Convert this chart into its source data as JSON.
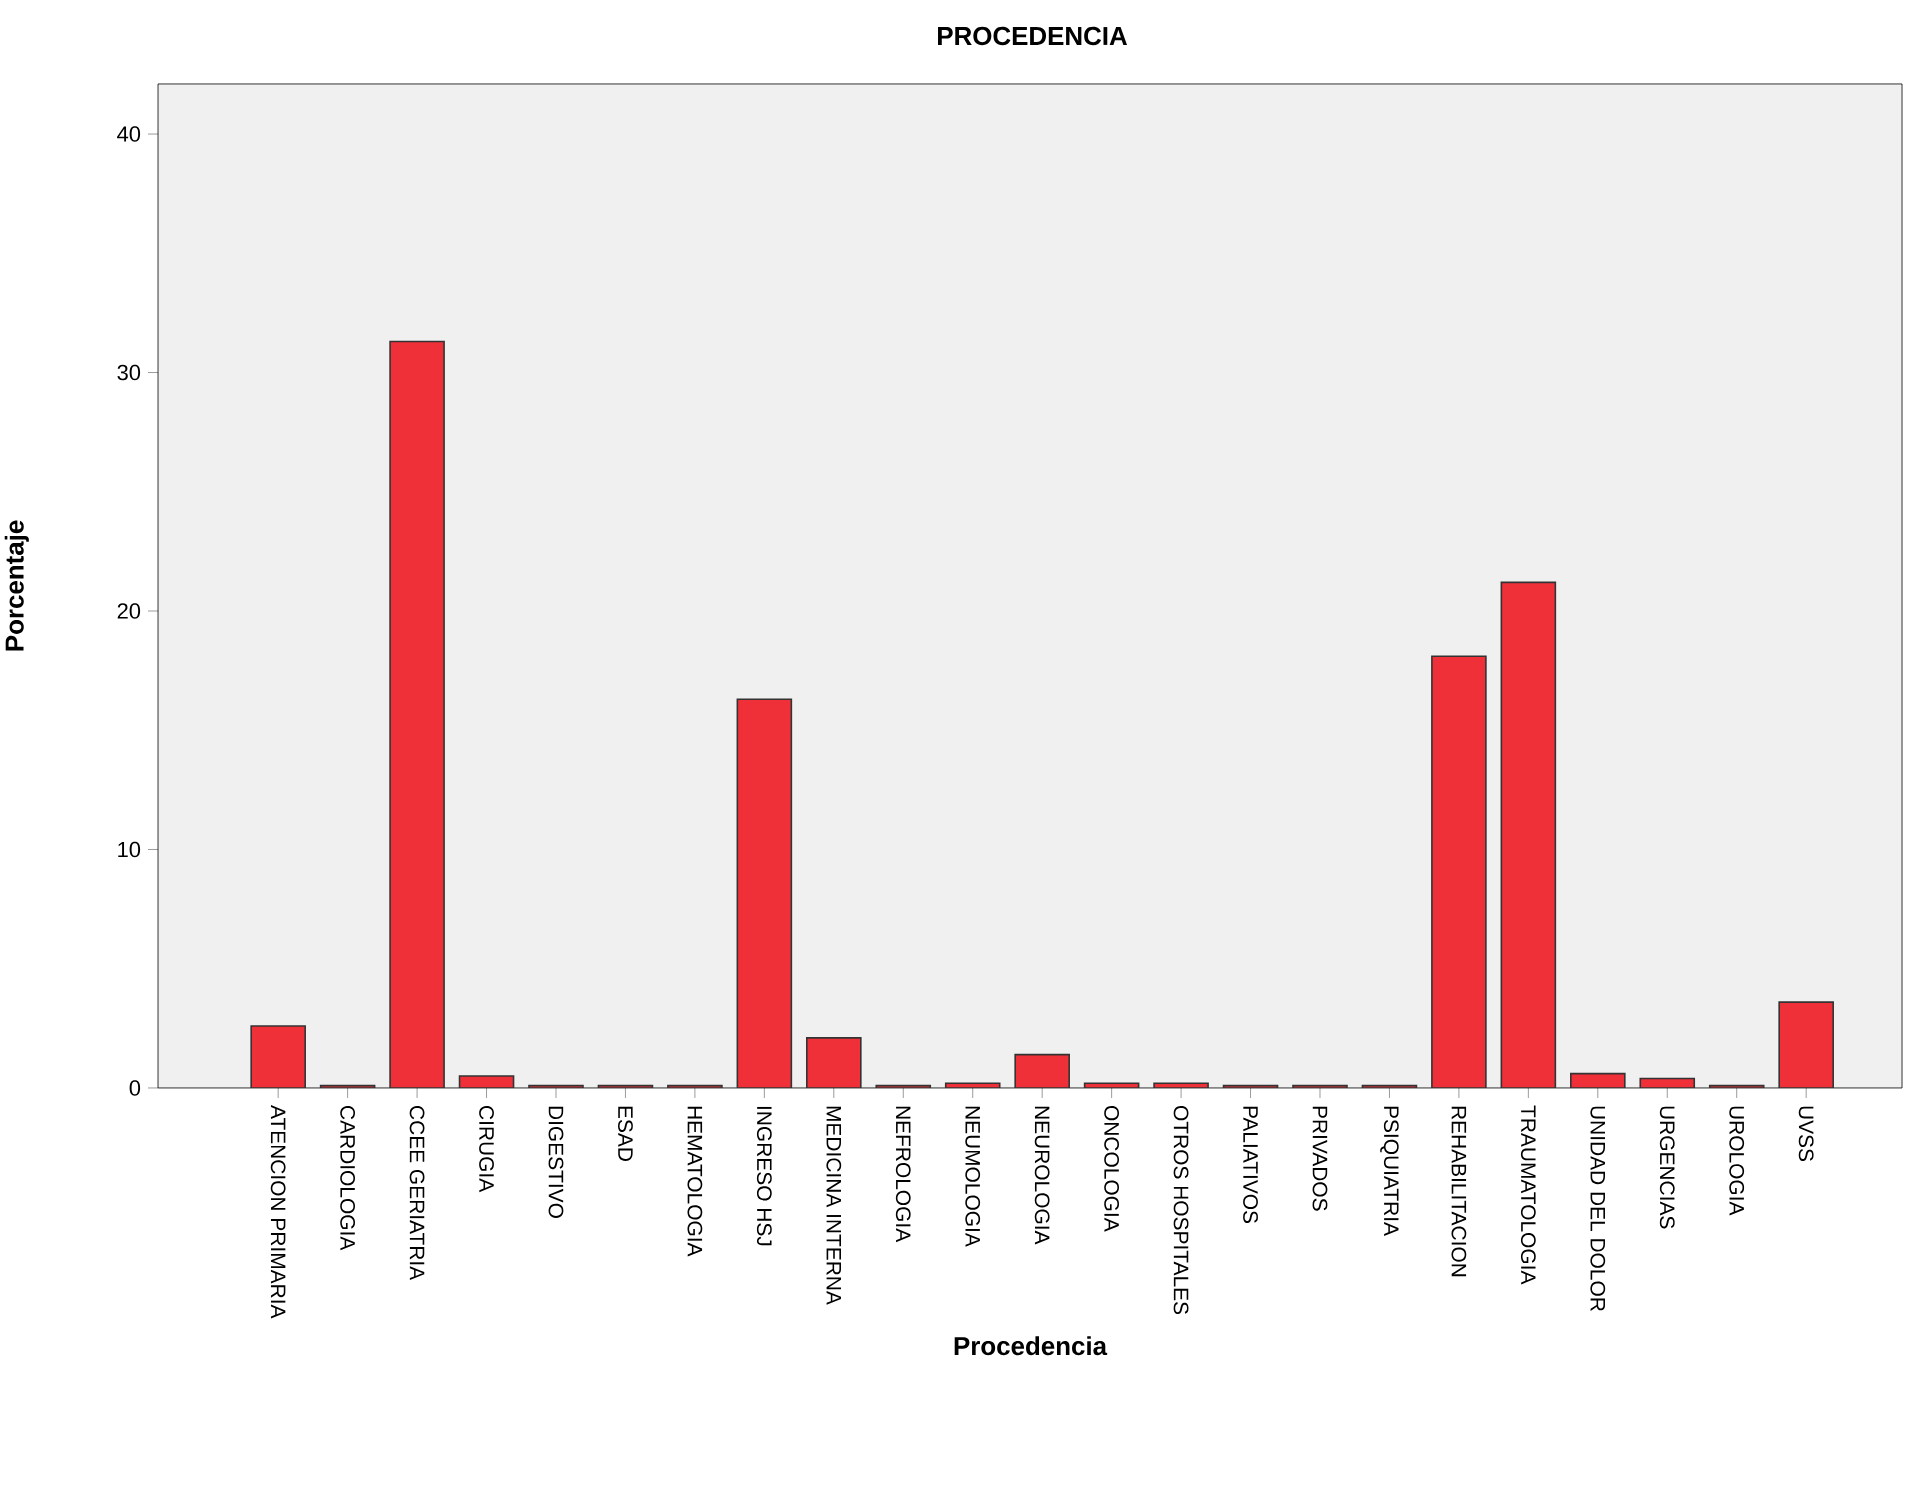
{
  "chart_data": {
    "type": "bar",
    "title": "PROCEDENCIA",
    "xlabel": "Procedencia",
    "ylabel": "Porcentaje",
    "categories": [
      "ATENCION PRIMARIA",
      "CARDIOLOGIA",
      "CCEE GERIATRIA",
      "CIRUGIA",
      "DIGESTIVO",
      "ESAD",
      "HEMATOLOGIA",
      "INGRESO HSJ",
      "MEDICINA INTERNA",
      "NEFROLOGIA",
      "NEUMOLOGIA",
      "NEUROLOGIA",
      "ONCOLOGIA",
      "OTROS HOSPITALES",
      "PALIATIVOS",
      "PRIVADOS",
      "PSIQUIATRIA",
      "REHABILITACION",
      "TRAUMATOLOGIA",
      "UNIDAD DEL DOLOR",
      "URGENCIAS",
      "UROLOGIA",
      "UVSS"
    ],
    "values": [
      2.6,
      0.1,
      31.3,
      0.5,
      0.1,
      0.1,
      0.1,
      16.3,
      2.1,
      0.1,
      0.2,
      1.4,
      0.2,
      0.2,
      0.1,
      0.1,
      0.1,
      18.1,
      21.2,
      0.6,
      0.4,
      0.1,
      3.6
    ],
    "color": "#f03039",
    "ylim": [
      0,
      42.1
    ],
    "yticks": [
      0,
      10,
      20,
      30,
      40
    ]
  }
}
